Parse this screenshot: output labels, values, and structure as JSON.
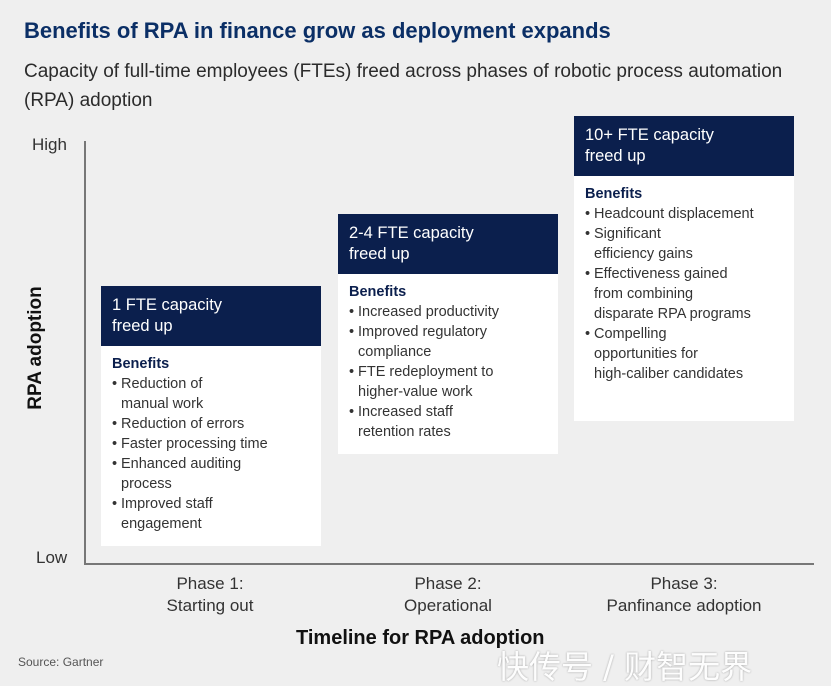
{
  "title": "Benefits of RPA in finance grow as deployment expands",
  "subtitle": "Capacity of full-time employees (FTEs) freed across phases of robotic process automation (RPA) adoption",
  "y_axis": {
    "label": "RPA adoption",
    "high": "High",
    "low": "Low"
  },
  "x_axis": {
    "label": "Timeline for RPA adoption"
  },
  "benefits_heading": "Benefits",
  "phases": [
    {
      "label_line1": "Phase 1:",
      "label_line2": "Starting out",
      "capacity_line1": "1 FTE capacity",
      "capacity_line2": "freed up",
      "benefits": [
        [
          "Reduction of",
          "manual work"
        ],
        [
          "Reduction of errors"
        ],
        [
          "Faster processing time"
        ],
        [
          "Enhanced auditing",
          "process"
        ],
        [
          "Improved staff",
          "engagement"
        ]
      ]
    },
    {
      "label_line1": "Phase 2:",
      "label_line2": "Operational",
      "capacity_line1": "2-4 FTE capacity",
      "capacity_line2": "freed up",
      "benefits": [
        [
          "Increased productivity"
        ],
        [
          "Improved regulatory",
          "compliance"
        ],
        [
          "FTE redeployment to",
          "higher-value work"
        ],
        [
          "Increased staff",
          "retention rates"
        ]
      ]
    },
    {
      "label_line1": "Phase 3:",
      "label_line2": "Panfinance adoption",
      "capacity_line1": "10+ FTE capacity",
      "capacity_line2": "freed up",
      "benefits": [
        [
          "Headcount displacement"
        ],
        [
          "Significant",
          "efficiency gains"
        ],
        [
          "Effectiveness gained",
          "from combining",
          "disparate RPA programs"
        ],
        [
          "Compelling",
          "opportunities for",
          "high-caliber candidates"
        ]
      ]
    }
  ],
  "source": "Source: Gartner",
  "watermark": "快传号 / 财智无界",
  "colors": {
    "title": "#0b2f66",
    "header_fill": "#0b1f4d",
    "background": "#efefef"
  }
}
